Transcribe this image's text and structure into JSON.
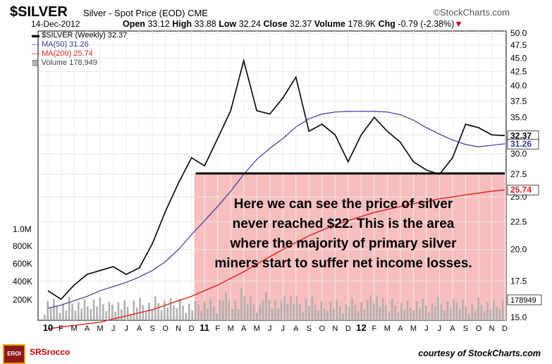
{
  "header": {
    "title": "$SILVER",
    "subtitle": "Silver - Spot Price (EOD)  CME",
    "source": "©StockCharts.com",
    "date": "14-Dec-2012",
    "open_label": "Open",
    "open": "33.12",
    "high_label": "High",
    "high": "33.88",
    "low_label": "Low",
    "low": "32.24",
    "close_label": "Close",
    "close": "32.37",
    "volume_label": "Volume",
    "volume": "178.9K",
    "chg_label": "Chg",
    "chg": "-0.79 (-2.38%)",
    "chg_arrow": "▼"
  },
  "legend": {
    "price": "$SILVER (Weekly) 32.37",
    "ma50": "MA(50) 31.26",
    "ma200": "MA(200) 25.74",
    "volume": "Volume 178,949"
  },
  "annotation": {
    "line1": "Here we can see the price of silver",
    "line2": "never reached $22.  This is the area",
    "line3": "where the majority of primary silver",
    "line4": "miners start to suffer net income losses."
  },
  "footer": {
    "logo_text": "EROI",
    "brand": "SRSrocco",
    "courtesy": "courtesy of StockCharts.com"
  },
  "colors": {
    "price": "#000000",
    "ma50": "#3a3a9c",
    "ma200": "#e02020",
    "shaded_zone": "#f7b7b7",
    "volume": "#b0b0b0"
  },
  "chart_data": {
    "type": "line",
    "title": "$SILVER",
    "price_axis": {
      "ylim": [
        15,
        50
      ],
      "ticks": [
        "50.0",
        "47.5",
        "45.0",
        "42.5",
        "40.0",
        "37.5",
        "35.0",
        "32.5",
        "30.0",
        "27.5",
        "25.0",
        "22.5",
        "20.0",
        "17.5",
        "15.0"
      ],
      "scale": "log"
    },
    "volume_axis": {
      "ticks": [
        "1.0M",
        "800K",
        "600K",
        "400K",
        "200K"
      ]
    },
    "x_tick_labels": [
      "10",
      "F",
      "M",
      "A",
      "M",
      "J",
      "J",
      "A",
      "S",
      "O",
      "N",
      "D",
      "11",
      "F",
      "M",
      "A",
      "M",
      "J",
      "J",
      "A",
      "S",
      "O",
      "N",
      "D",
      "12",
      "F",
      "M",
      "A",
      "M",
      "J",
      "J",
      "A",
      "S",
      "O",
      "N",
      "D"
    ],
    "x": [
      "2010-01",
      "2010-02",
      "2010-03",
      "2010-04",
      "2010-05",
      "2010-06",
      "2010-07",
      "2010-08",
      "2010-09",
      "2010-10",
      "2010-11",
      "2010-12",
      "2011-01",
      "2011-02",
      "2011-03",
      "2011-04",
      "2011-05",
      "2011-06",
      "2011-07",
      "2011-08",
      "2011-09",
      "2011-10",
      "2011-11",
      "2011-12",
      "2012-01",
      "2012-02",
      "2012-03",
      "2012-04",
      "2012-05",
      "2012-06",
      "2012-07",
      "2012-08",
      "2012-09",
      "2012-10",
      "2012-11",
      "2012-12"
    ],
    "series": [
      {
        "name": "$SILVER (Weekly)",
        "values": [
          16.8,
          16.2,
          17.2,
          18.0,
          18.3,
          18.6,
          18.0,
          18.5,
          20.5,
          23.5,
          26.5,
          29.5,
          28.5,
          32.0,
          36.0,
          44.5,
          36.0,
          35.5,
          38.0,
          41.5,
          33.0,
          34.0,
          32.5,
          29.0,
          32.5,
          35.0,
          33.0,
          31.5,
          29.0,
          28.0,
          27.5,
          29.5,
          34.0,
          33.5,
          32.5,
          32.4
        ]
      },
      {
        "name": "MA(50)",
        "values": [
          15.6,
          15.8,
          16.1,
          16.4,
          16.8,
          17.1,
          17.4,
          17.8,
          18.3,
          19.0,
          20.0,
          21.3,
          22.6,
          24.0,
          25.6,
          27.5,
          29.3,
          30.7,
          32.0,
          33.6,
          34.8,
          35.5,
          35.8,
          35.9,
          35.9,
          35.9,
          35.8,
          35.4,
          34.6,
          33.5,
          32.6,
          31.8,
          31.2,
          30.9,
          31.1,
          31.3
        ]
      },
      {
        "name": "MA(200)",
        "values": [
          14.3,
          14.4,
          14.5,
          14.6,
          14.7,
          14.9,
          15.1,
          15.3,
          15.5,
          15.8,
          16.1,
          16.4,
          16.8,
          17.2,
          17.7,
          18.2,
          18.8,
          19.4,
          20.0,
          20.6,
          21.2,
          21.7,
          22.2,
          22.6,
          23.0,
          23.4,
          23.7,
          24.0,
          24.3,
          24.5,
          24.8,
          25.0,
          25.2,
          25.4,
          25.6,
          25.74
        ]
      }
    ],
    "reference_line": {
      "value": 27.6,
      "label": ""
    },
    "shaded_zone": {
      "from": 15,
      "to": 27.6
    },
    "last_price_label": "32.37",
    "ma50_label": "31.26",
    "ma200_label": "25.74",
    "volume_label": "178949"
  }
}
